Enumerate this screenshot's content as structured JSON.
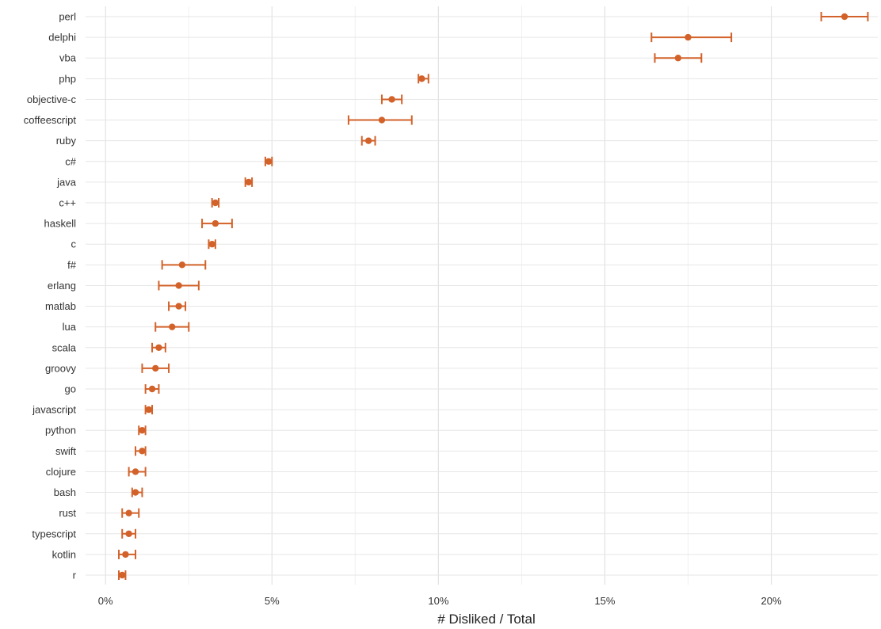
{
  "chart_data": {
    "type": "scatter",
    "subtype": "dot-with-error-bars",
    "orientation": "horizontal",
    "title": "",
    "xlabel": "# Disliked / Total",
    "ylabel": "",
    "xlim": [
      -0.006,
      0.232
    ],
    "x_ticks": [
      0,
      0.05,
      0.1,
      0.15,
      0.2
    ],
    "x_tick_labels": [
      "0%",
      "5%",
      "10%",
      "15%",
      "20%"
    ],
    "grid": true,
    "legend": "none",
    "color": "#d2622a",
    "categories": [
      "perl",
      "delphi",
      "vba",
      "php",
      "objective-c",
      "coffeescript",
      "ruby",
      "c#",
      "java",
      "c++",
      "haskell",
      "c",
      "f#",
      "erlang",
      "matlab",
      "lua",
      "scala",
      "groovy",
      "go",
      "javascript",
      "python",
      "swift",
      "clojure",
      "bash",
      "rust",
      "typescript",
      "kotlin",
      "r"
    ],
    "values": [
      0.222,
      0.175,
      0.172,
      0.095,
      0.086,
      0.083,
      0.079,
      0.049,
      0.043,
      0.033,
      0.033,
      0.032,
      0.023,
      0.022,
      0.022,
      0.02,
      0.016,
      0.015,
      0.014,
      0.013,
      0.011,
      0.011,
      0.009,
      0.009,
      0.007,
      0.007,
      0.006,
      0.005
    ],
    "lower": [
      0.215,
      0.164,
      0.165,
      0.094,
      0.083,
      0.073,
      0.077,
      0.048,
      0.042,
      0.032,
      0.029,
      0.031,
      0.017,
      0.016,
      0.019,
      0.015,
      0.014,
      0.011,
      0.012,
      0.012,
      0.01,
      0.009,
      0.007,
      0.008,
      0.005,
      0.005,
      0.004,
      0.004
    ],
    "upper": [
      0.229,
      0.188,
      0.179,
      0.097,
      0.089,
      0.092,
      0.081,
      0.05,
      0.044,
      0.034,
      0.038,
      0.033,
      0.03,
      0.028,
      0.024,
      0.025,
      0.018,
      0.019,
      0.016,
      0.014,
      0.012,
      0.012,
      0.012,
      0.011,
      0.01,
      0.009,
      0.009,
      0.006
    ]
  }
}
